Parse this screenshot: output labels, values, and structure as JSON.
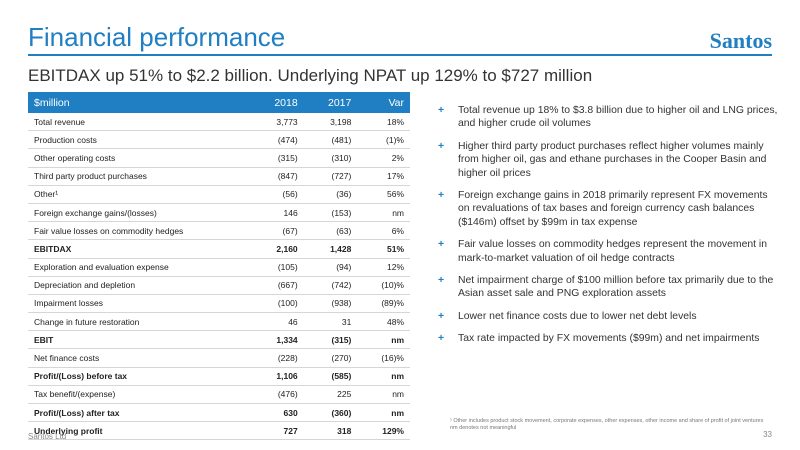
{
  "header": {
    "title": "Financial performance",
    "logo": "Santos"
  },
  "subtitle": "EBITDAX up 51% to $2.2 billion. Underlying NPAT up 129% to $727 million",
  "table": {
    "headers": [
      "$million",
      "2018",
      "2017",
      "Var"
    ],
    "rows": [
      {
        "label": "Total revenue",
        "y2018": "3,773",
        "y2017": "3,198",
        "var": "18%",
        "bold": false
      },
      {
        "label": "Production costs",
        "y2018": "(474)",
        "y2017": "(481)",
        "var": "(1)%",
        "bold": false
      },
      {
        "label": "Other operating costs",
        "y2018": "(315)",
        "y2017": "(310)",
        "var": "2%",
        "bold": false
      },
      {
        "label": "Third party product purchases",
        "y2018": "(847)",
        "y2017": "(727)",
        "var": "17%",
        "bold": false
      },
      {
        "label": "Other¹",
        "y2018": "(56)",
        "y2017": "(36)",
        "var": "56%",
        "bold": false
      },
      {
        "label": "Foreign exchange gains/(losses)",
        "y2018": "146",
        "y2017": "(153)",
        "var": "nm",
        "bold": false
      },
      {
        "label": "Fair value losses on commodity hedges",
        "y2018": "(67)",
        "y2017": "(63)",
        "var": "6%",
        "bold": false
      },
      {
        "label": "EBITDAX",
        "y2018": "2,160",
        "y2017": "1,428",
        "var": "51%",
        "bold": true
      },
      {
        "label": "Exploration and evaluation expense",
        "y2018": "(105)",
        "y2017": "(94)",
        "var": "12%",
        "bold": false
      },
      {
        "label": "Depreciation and depletion",
        "y2018": "(667)",
        "y2017": "(742)",
        "var": "(10)%",
        "bold": false
      },
      {
        "label": "Impairment losses",
        "y2018": "(100)",
        "y2017": "(938)",
        "var": "(89)%",
        "bold": false
      },
      {
        "label": "Change in future restoration",
        "y2018": "46",
        "y2017": "31",
        "var": "48%",
        "bold": false
      },
      {
        "label": "EBIT",
        "y2018": "1,334",
        "y2017": "(315)",
        "var": "nm",
        "bold": true
      },
      {
        "label": "Net finance costs",
        "y2018": "(228)",
        "y2017": "(270)",
        "var": "(16)%",
        "bold": false
      },
      {
        "label": "Profit/(Loss) before tax",
        "y2018": "1,106",
        "y2017": "(585)",
        "var": "nm",
        "bold": true
      },
      {
        "label": "Tax benefit/(expense)",
        "y2018": "(476)",
        "y2017": "225",
        "var": "nm",
        "bold": false
      },
      {
        "label": "Profit/(Loss) after tax",
        "y2018": "630",
        "y2017": "(360)",
        "var": "nm",
        "bold": true
      },
      {
        "label": "Underlying profit",
        "y2018": "727",
        "y2017": "318",
        "var": "129%",
        "bold": true
      }
    ]
  },
  "bullets": [
    "Total revenue up 18% to $3.8 billion due to higher oil and LNG prices, and higher crude oil volumes",
    "Higher third party product purchases reflect higher volumes mainly from higher oil, gas and ethane purchases in the Cooper Basin and higher oil prices",
    "Foreign exchange gains in 2018 primarily represent FX movements on revaluations of tax bases and foreign currency cash balances ($146m) offset by $99m in tax expense",
    "Fair value losses on commodity hedges represent the movement in mark-to-market valuation of oil hedge contracts",
    "Net impairment charge of $100 million before tax primarily due to the Asian asset sale and PNG exploration assets",
    "Lower net finance costs due to lower net debt levels",
    "Tax rate impacted by FX movements ($99m) and net impairments"
  ],
  "footnotes": [
    "¹ Other includes product stock movement, corporate expenses, other expenses, other income and share of profit of joint ventures",
    "nm denotes not meaningful"
  ],
  "footer": {
    "company": "Santos Ltd",
    "page": "33"
  }
}
